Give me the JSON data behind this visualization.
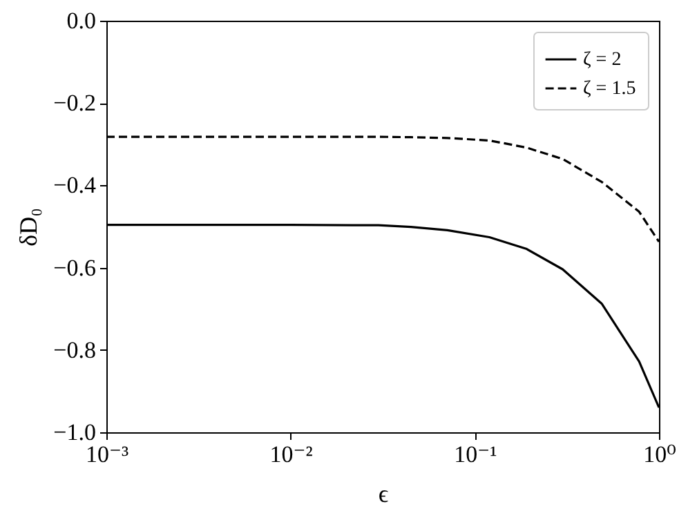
{
  "chart_data": {
    "type": "line",
    "xlabel": "ϵ",
    "ylabel": "δD₀",
    "log": "x",
    "x": [
      0.001,
      0.01,
      0.03,
      0.045,
      0.071,
      0.12,
      0.19,
      0.3,
      0.49,
      0.78,
      1.0
    ],
    "series": [
      {
        "name": "ζ = 2",
        "color": "#000000",
        "line_style": "solid",
        "values": [
          -0.496,
          -0.496,
          -0.497,
          -0.501,
          -0.509,
          -0.526,
          -0.554,
          -0.604,
          -0.688,
          -0.828,
          -0.94
        ]
      },
      {
        "name": "ζ = 1.5",
        "color": "#000000",
        "line_style": "dashed",
        "values": [
          -0.282,
          -0.282,
          -0.282,
          -0.283,
          -0.285,
          -0.291,
          -0.308,
          -0.336,
          -0.392,
          -0.464,
          -0.537
        ]
      }
    ],
    "xlim": [
      0.001,
      1.0
    ],
    "ylim": [
      -1.0,
      0.0
    ],
    "xticks": [
      {
        "value": 0.001,
        "label": "10⁻³"
      },
      {
        "value": 0.01,
        "label": "10⁻²"
      },
      {
        "value": 0.1,
        "label": "10⁻¹"
      },
      {
        "value": 1,
        "label": "10⁰"
      }
    ],
    "yticks": [
      {
        "value": -1.0,
        "label": "−1.0"
      },
      {
        "value": -0.8,
        "label": "−0.8"
      },
      {
        "value": -0.6,
        "label": "−0.6"
      },
      {
        "value": -0.4,
        "label": "−0.4"
      },
      {
        "value": -0.2,
        "label": "−0.2"
      },
      {
        "value": 0.0,
        "label": "0.0"
      }
    ],
    "grid": false,
    "legend": "top right",
    "marker": "none"
  }
}
